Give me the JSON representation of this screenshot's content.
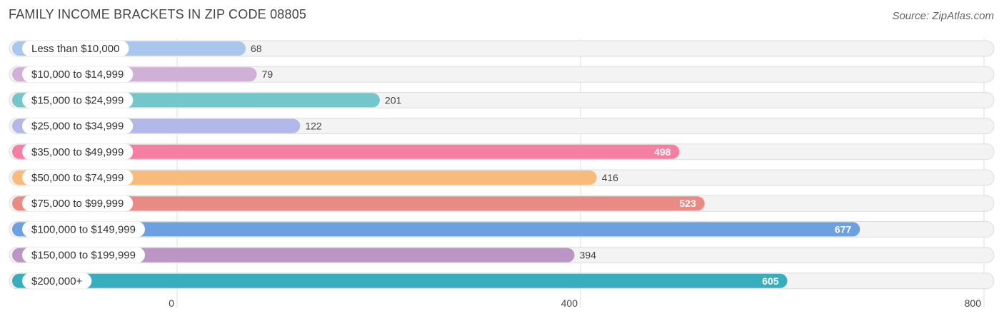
{
  "title": "FAMILY INCOME BRACKETS IN ZIP CODE 08805",
  "source": "Source: ZipAtlas.com",
  "chart_data": {
    "type": "bar",
    "orientation": "horizontal",
    "categories": [
      "Less than $10,000",
      "$10,000 to $14,999",
      "$15,000 to $24,999",
      "$25,000 to $34,999",
      "$35,000 to $49,999",
      "$50,000 to $74,999",
      "$75,000 to $99,999",
      "$100,000 to $149,999",
      "$150,000 to $199,999",
      "$200,000+"
    ],
    "values": [
      68,
      79,
      201,
      122,
      498,
      416,
      523,
      677,
      394,
      605
    ],
    "colors": [
      "#a9c7ec",
      "#d0b0d6",
      "#73c6c9",
      "#b3b8eb",
      "#f47fa3",
      "#f9bb7b",
      "#ea8a84",
      "#6ca0e0",
      "#bb96c5",
      "#37adbd"
    ],
    "xlim": [
      0,
      800
    ],
    "xticks": [
      0,
      400,
      800
    ],
    "grid": true,
    "title": "FAMILY INCOME BRACKETS IN ZIP CODE 08805",
    "xlabel": "",
    "ylabel": ""
  }
}
